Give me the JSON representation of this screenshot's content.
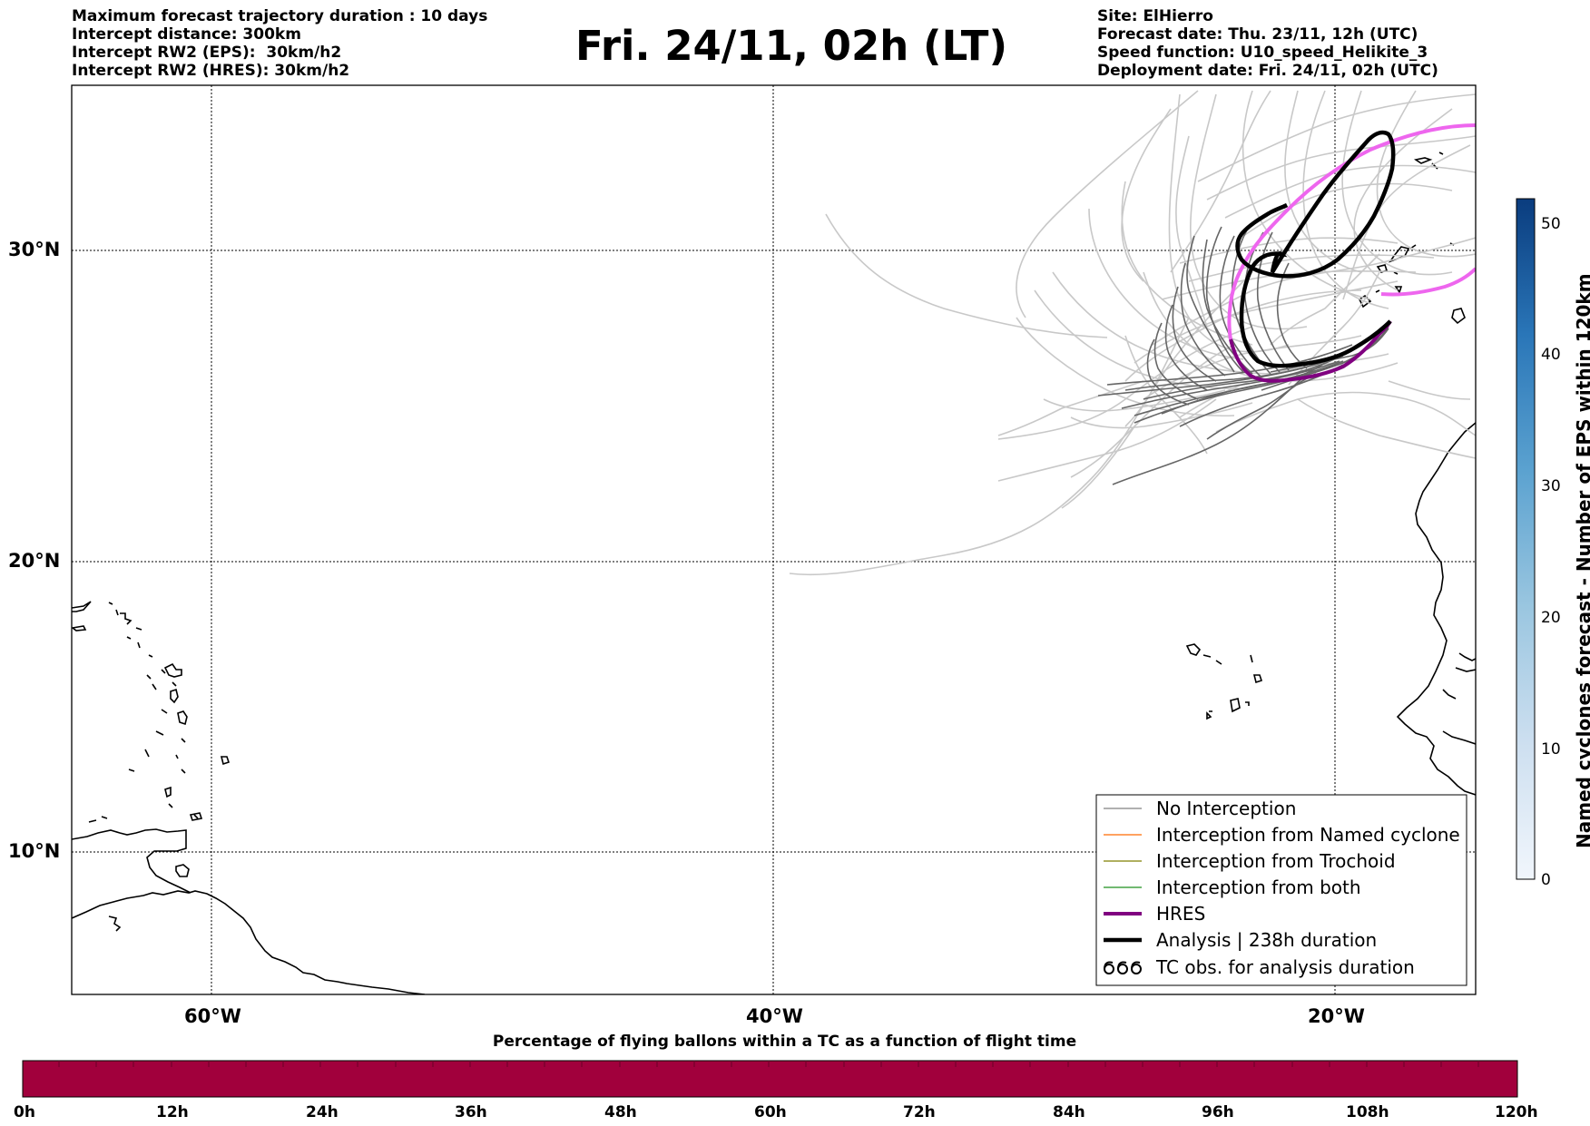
{
  "header_left": [
    "Maximum forecast trajectory duration : 10 days",
    "Intercept distance: 300km",
    "Intercept RW2 (EPS):  30km/h2",
    "Intercept RW2 (HRES): 30km/h2"
  ],
  "title": "Fri. 24/11, 02h (LT)",
  "header_right": [
    "Site: ElHierro",
    "Forecast date: Thu. 23/11, 12h (UTC)",
    "Speed function: U10_speed_Helikite_3",
    "Deployment date: Fri. 24/11, 02h (UTC)"
  ],
  "map": {
    "lat_labels": [
      "30°N",
      "20°N",
      "10°N"
    ],
    "lon_labels": [
      "60°W",
      "40°W",
      "20°W"
    ],
    "lon_range": [
      -65,
      -15
    ],
    "lat_range": [
      4.6,
      33.9
    ],
    "gridlines": true
  },
  "legend": {
    "placement": "lower-right",
    "items": [
      {
        "label": "No Interception",
        "color": "#808080"
      },
      {
        "label": "Interception from Named cyclone",
        "color": "#ff6a00"
      },
      {
        "label": "Interception from Trochoid",
        "color": "#7f7f00"
      },
      {
        "label": "Interception from both",
        "color": "#1f8f1f"
      },
      {
        "label": "HRES",
        "color": "#800080"
      },
      {
        "label": "Analysis | 238h duration",
        "color": "#000000"
      },
      {
        "label": "TC obs. for analysis duration",
        "symbol": "cyclone-symbols"
      }
    ]
  },
  "colorbar": {
    "label": "Named cyclones forecast - Number of EPS within 120km",
    "ticks": [
      "0",
      "10",
      "20",
      "30",
      "40",
      "50"
    ],
    "range": [
      0,
      52
    ],
    "colormap": "Blues"
  },
  "time_bar": {
    "title": "Percentage of flying ballons within a TC as a function of flight time",
    "ticks": [
      "0h",
      "12h",
      "24h",
      "36h",
      "48h",
      "60h",
      "72h",
      "84h",
      "96h",
      "108h",
      "120h"
    ],
    "fill_color": "#a1003c"
  },
  "colors": {
    "eps_no_interception": "#c8c8c8",
    "eps_dark": "#666666",
    "hres_ring": "#ee66ee",
    "hres": "#800080",
    "analysis": "#000000",
    "coast": "#000000"
  }
}
